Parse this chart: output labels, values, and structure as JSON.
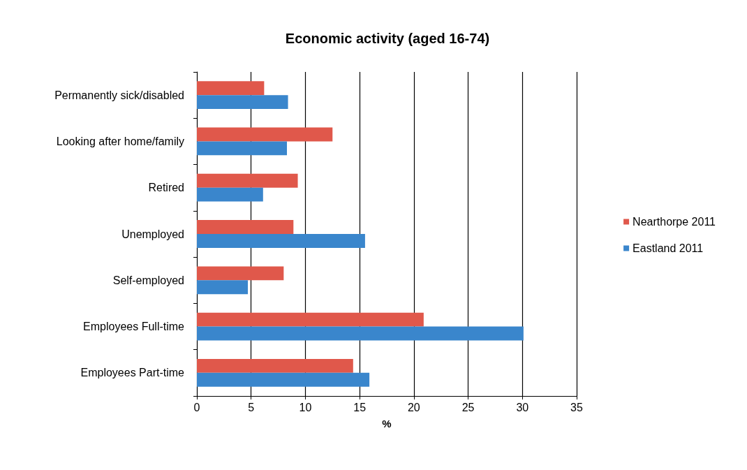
{
  "chart_data": {
    "type": "bar",
    "orientation": "horizontal",
    "title": "Economic activity (aged 16-74)",
    "xlabel": "%",
    "categories": [
      "Permanently sick/disabled",
      "Looking after home/family",
      "Retired",
      "Unemployed",
      "Self-employed",
      "Employees Full-time",
      "Employees Part-time"
    ],
    "series": [
      {
        "name": "Nearthorpe 2011",
        "color": "#e0584b",
        "values": [
          6.2,
          12.5,
          9.3,
          8.9,
          8.0,
          20.9,
          14.4
        ]
      },
      {
        "name": "Eastland 2011",
        "color": "#3a86cc",
        "values": [
          8.4,
          8.3,
          6.1,
          15.5,
          4.7,
          30.1,
          15.9
        ]
      }
    ],
    "xlim": [
      0,
      35
    ],
    "xticks": [
      0,
      5,
      10,
      15,
      20,
      25,
      30,
      35
    ],
    "grid": "x",
    "legend": "right"
  }
}
